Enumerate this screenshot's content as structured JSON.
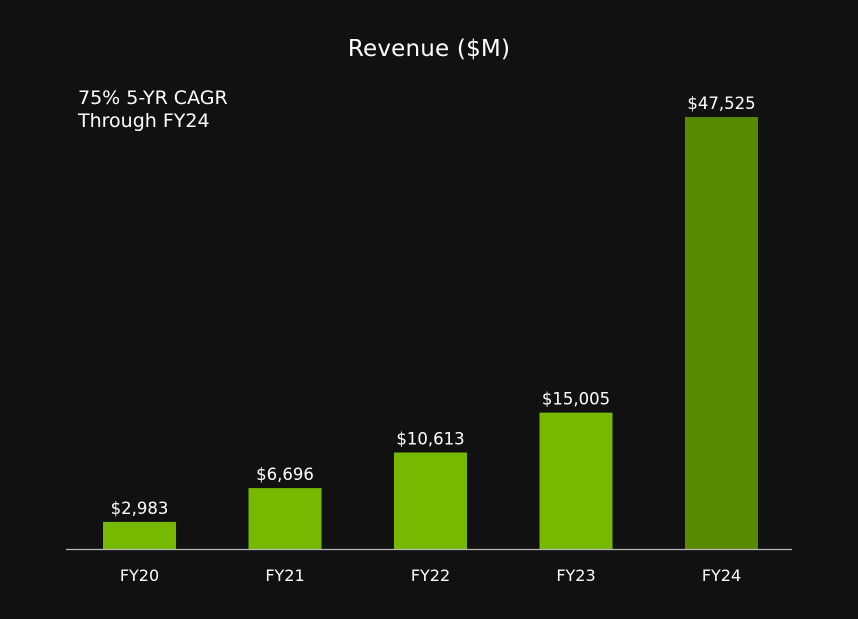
{
  "chart_data": {
    "type": "bar",
    "title": "Revenue ($M)",
    "annotation": {
      "line1": "75% 5-YR CAGR",
      "line2": "Through FY24"
    },
    "categories": [
      "FY20",
      "FY21",
      "FY22",
      "FY23",
      "FY24"
    ],
    "values": [
      2983,
      6696,
      10613,
      15005,
      47525
    ],
    "value_labels": [
      "$2,983",
      "$6,696",
      "$10,613",
      "$15,005",
      "$47,525"
    ],
    "xlabel": "",
    "ylabel": "",
    "ylim": [
      0,
      47525
    ],
    "grid": false,
    "colors": {
      "background": "#111112",
      "bar": "#76b900",
      "highlight_bar": "#578a00",
      "baseline": "#b8b8b8",
      "text": "#ffffff"
    },
    "highlight_index": 4
  }
}
